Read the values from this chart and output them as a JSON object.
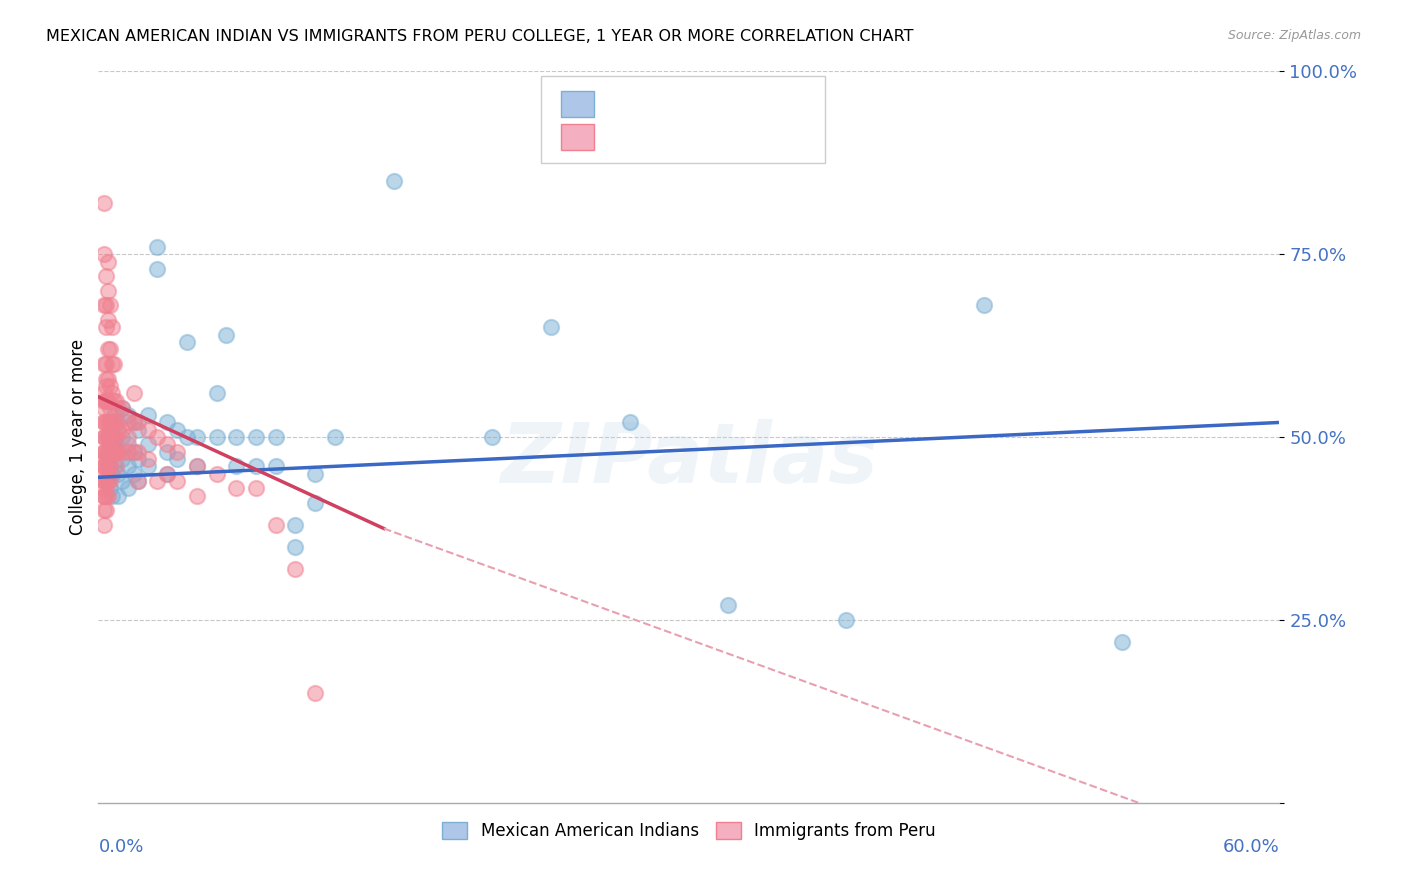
{
  "title": "MEXICAN AMERICAN INDIAN VS IMMIGRANTS FROM PERU COLLEGE, 1 YEAR OR MORE CORRELATION CHART",
  "source": "Source: ZipAtlas.com",
  "ylabel": "College, 1 year or more",
  "watermark": "ZIPatlas",
  "legend1_color": "#aec6e8",
  "legend2_color": "#f4afc0",
  "blue_dot_color": "#7bafd4",
  "pink_dot_color": "#f08090",
  "blue_line_color": "#3a68c4",
  "pink_line_color": "#d04060",
  "dashed_line_color": "#e8a0b0",
  "xmin": 0.0,
  "xmax": 0.6,
  "ymin": 0.0,
  "ymax": 1.0,
  "blue_line": [
    0.0,
    0.6,
    0.445,
    0.52
  ],
  "pink_solid": [
    0.0,
    0.145,
    0.555,
    0.375
  ],
  "pink_dashed": [
    0.145,
    0.6,
    0.375,
    -0.07
  ],
  "blue_scatter": [
    [
      0.005,
      0.47
    ],
    [
      0.005,
      0.5
    ],
    [
      0.005,
      0.44
    ],
    [
      0.005,
      0.48
    ],
    [
      0.006,
      0.52
    ],
    [
      0.006,
      0.46
    ],
    [
      0.006,
      0.49
    ],
    [
      0.006,
      0.43
    ],
    [
      0.007,
      0.5
    ],
    [
      0.007,
      0.48
    ],
    [
      0.007,
      0.45
    ],
    [
      0.007,
      0.42
    ],
    [
      0.008,
      0.53
    ],
    [
      0.008,
      0.49
    ],
    [
      0.008,
      0.46
    ],
    [
      0.01,
      0.52
    ],
    [
      0.01,
      0.48
    ],
    [
      0.01,
      0.45
    ],
    [
      0.01,
      0.42
    ],
    [
      0.012,
      0.54
    ],
    [
      0.012,
      0.5
    ],
    [
      0.012,
      0.47
    ],
    [
      0.012,
      0.44
    ],
    [
      0.015,
      0.53
    ],
    [
      0.015,
      0.49
    ],
    [
      0.015,
      0.46
    ],
    [
      0.015,
      0.43
    ],
    [
      0.018,
      0.52
    ],
    [
      0.018,
      0.48
    ],
    [
      0.018,
      0.45
    ],
    [
      0.02,
      0.51
    ],
    [
      0.02,
      0.47
    ],
    [
      0.02,
      0.44
    ],
    [
      0.025,
      0.53
    ],
    [
      0.025,
      0.49
    ],
    [
      0.025,
      0.46
    ],
    [
      0.03,
      0.76
    ],
    [
      0.03,
      0.73
    ],
    [
      0.035,
      0.52
    ],
    [
      0.035,
      0.48
    ],
    [
      0.035,
      0.45
    ],
    [
      0.04,
      0.51
    ],
    [
      0.04,
      0.47
    ],
    [
      0.045,
      0.63
    ],
    [
      0.045,
      0.5
    ],
    [
      0.05,
      0.5
    ],
    [
      0.05,
      0.46
    ],
    [
      0.06,
      0.56
    ],
    [
      0.06,
      0.5
    ],
    [
      0.065,
      0.64
    ],
    [
      0.07,
      0.5
    ],
    [
      0.07,
      0.46
    ],
    [
      0.08,
      0.5
    ],
    [
      0.08,
      0.46
    ],
    [
      0.09,
      0.5
    ],
    [
      0.09,
      0.46
    ],
    [
      0.1,
      0.38
    ],
    [
      0.1,
      0.35
    ],
    [
      0.11,
      0.45
    ],
    [
      0.11,
      0.41
    ],
    [
      0.12,
      0.5
    ],
    [
      0.15,
      0.85
    ],
    [
      0.2,
      0.5
    ],
    [
      0.23,
      0.65
    ],
    [
      0.27,
      0.52
    ],
    [
      0.32,
      0.27
    ],
    [
      0.38,
      0.25
    ],
    [
      0.45,
      0.68
    ],
    [
      0.52,
      0.22
    ]
  ],
  "pink_scatter": [
    [
      0.003,
      0.82
    ],
    [
      0.003,
      0.75
    ],
    [
      0.003,
      0.68
    ],
    [
      0.003,
      0.6
    ],
    [
      0.003,
      0.55
    ],
    [
      0.003,
      0.52
    ],
    [
      0.003,
      0.5
    ],
    [
      0.003,
      0.48
    ],
    [
      0.003,
      0.47
    ],
    [
      0.003,
      0.46
    ],
    [
      0.003,
      0.45
    ],
    [
      0.003,
      0.44
    ],
    [
      0.003,
      0.43
    ],
    [
      0.003,
      0.42
    ],
    [
      0.003,
      0.5
    ],
    [
      0.003,
      0.52
    ],
    [
      0.003,
      0.54
    ],
    [
      0.003,
      0.56
    ],
    [
      0.003,
      0.48
    ],
    [
      0.003,
      0.46
    ],
    [
      0.003,
      0.44
    ],
    [
      0.003,
      0.42
    ],
    [
      0.003,
      0.4
    ],
    [
      0.003,
      0.38
    ],
    [
      0.004,
      0.72
    ],
    [
      0.004,
      0.68
    ],
    [
      0.004,
      0.65
    ],
    [
      0.004,
      0.58
    ],
    [
      0.004,
      0.55
    ],
    [
      0.004,
      0.52
    ],
    [
      0.004,
      0.5
    ],
    [
      0.004,
      0.48
    ],
    [
      0.004,
      0.46
    ],
    [
      0.004,
      0.44
    ],
    [
      0.004,
      0.42
    ],
    [
      0.004,
      0.4
    ],
    [
      0.004,
      0.55
    ],
    [
      0.004,
      0.57
    ],
    [
      0.004,
      0.6
    ],
    [
      0.005,
      0.74
    ],
    [
      0.005,
      0.7
    ],
    [
      0.005,
      0.66
    ],
    [
      0.005,
      0.62
    ],
    [
      0.005,
      0.58
    ],
    [
      0.005,
      0.55
    ],
    [
      0.005,
      0.52
    ],
    [
      0.005,
      0.5
    ],
    [
      0.005,
      0.48
    ],
    [
      0.005,
      0.46
    ],
    [
      0.005,
      0.44
    ],
    [
      0.005,
      0.42
    ],
    [
      0.006,
      0.68
    ],
    [
      0.006,
      0.62
    ],
    [
      0.006,
      0.57
    ],
    [
      0.006,
      0.54
    ],
    [
      0.006,
      0.52
    ],
    [
      0.006,
      0.5
    ],
    [
      0.006,
      0.48
    ],
    [
      0.006,
      0.46
    ],
    [
      0.006,
      0.44
    ],
    [
      0.007,
      0.65
    ],
    [
      0.007,
      0.6
    ],
    [
      0.007,
      0.56
    ],
    [
      0.007,
      0.52
    ],
    [
      0.007,
      0.5
    ],
    [
      0.007,
      0.48
    ],
    [
      0.008,
      0.6
    ],
    [
      0.008,
      0.55
    ],
    [
      0.008,
      0.52
    ],
    [
      0.008,
      0.5
    ],
    [
      0.008,
      0.48
    ],
    [
      0.009,
      0.55
    ],
    [
      0.009,
      0.52
    ],
    [
      0.009,
      0.5
    ],
    [
      0.009,
      0.48
    ],
    [
      0.009,
      0.46
    ],
    [
      0.01,
      0.54
    ],
    [
      0.01,
      0.51
    ],
    [
      0.01,
      0.48
    ],
    [
      0.012,
      0.54
    ],
    [
      0.012,
      0.51
    ],
    [
      0.012,
      0.48
    ],
    [
      0.015,
      0.52
    ],
    [
      0.015,
      0.5
    ],
    [
      0.015,
      0.48
    ],
    [
      0.018,
      0.56
    ],
    [
      0.018,
      0.52
    ],
    [
      0.018,
      0.48
    ],
    [
      0.02,
      0.52
    ],
    [
      0.02,
      0.48
    ],
    [
      0.02,
      0.44
    ],
    [
      0.025,
      0.51
    ],
    [
      0.025,
      0.47
    ],
    [
      0.03,
      0.5
    ],
    [
      0.03,
      0.44
    ],
    [
      0.035,
      0.49
    ],
    [
      0.035,
      0.45
    ],
    [
      0.04,
      0.48
    ],
    [
      0.04,
      0.44
    ],
    [
      0.05,
      0.46
    ],
    [
      0.05,
      0.42
    ],
    [
      0.06,
      0.45
    ],
    [
      0.07,
      0.43
    ],
    [
      0.08,
      0.43
    ],
    [
      0.09,
      0.38
    ],
    [
      0.1,
      0.32
    ],
    [
      0.11,
      0.15
    ]
  ]
}
